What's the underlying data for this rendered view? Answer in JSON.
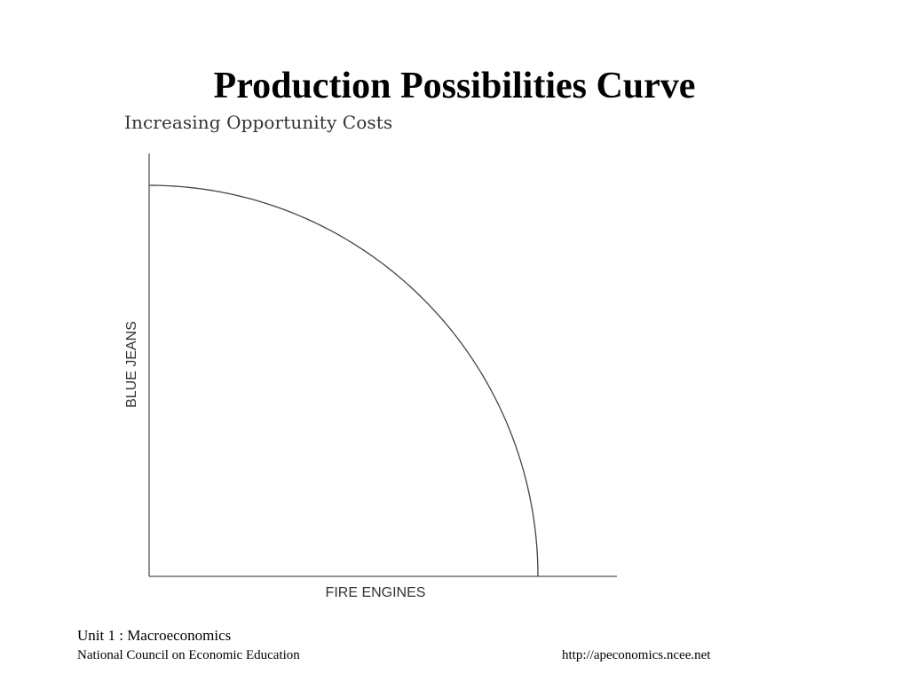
{
  "slide": {
    "title": "Production Possibilities Curve"
  },
  "footer": {
    "unit": "Unit 1 : Macroeconomics",
    "organization": "National Council on Economic Education",
    "url": "http://apeconomics.ncee.net"
  },
  "chart_data": {
    "type": "line",
    "subtitle": "Increasing Opportunity Costs",
    "xlabel": "FIRE ENGINES",
    "ylabel": "BLUE JEANS",
    "shape": "concave-to-origin",
    "grid": false,
    "ticks": false,
    "series": [
      {
        "x": [
          0,
          0.1,
          0.2,
          0.3,
          0.4,
          0.5,
          0.6,
          0.7,
          0.8,
          0.9,
          0.95,
          1.0
        ],
        "y": [
          1.0,
          0.995,
          0.98,
          0.954,
          0.917,
          0.866,
          0.8,
          0.714,
          0.6,
          0.436,
          0.312,
          0
        ]
      }
    ],
    "colors": {
      "curve": "#444444",
      "axes": "#555555"
    }
  }
}
